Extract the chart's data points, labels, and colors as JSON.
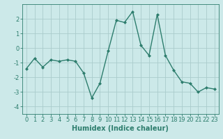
{
  "x": [
    0,
    1,
    2,
    3,
    4,
    5,
    6,
    7,
    8,
    9,
    10,
    11,
    12,
    13,
    14,
    15,
    16,
    17,
    18,
    19,
    20,
    21,
    22,
    23
  ],
  "y": [
    -1.4,
    -0.7,
    -1.3,
    -0.8,
    -0.9,
    -0.8,
    -0.9,
    -1.7,
    -3.4,
    -2.4,
    -0.2,
    1.9,
    1.75,
    2.5,
    0.2,
    -0.5,
    2.3,
    -0.5,
    -1.5,
    -2.3,
    -2.4,
    -3.0,
    -2.7,
    -2.8
  ],
  "line_color": "#2d7d6d",
  "marker": "D",
  "markersize": 2.0,
  "linewidth": 1.0,
  "bg_color": "#cce9e9",
  "grid_color": "#aacccc",
  "xlabel": "Humidex (Indice chaleur)",
  "xlabel_fontsize": 7,
  "tick_fontsize": 6,
  "xlim": [
    -0.5,
    23.5
  ],
  "ylim": [
    -4.5,
    3.0
  ],
  "yticks": [
    -4,
    -3,
    -2,
    -1,
    0,
    1,
    2
  ],
  "xticks": [
    0,
    1,
    2,
    3,
    4,
    5,
    6,
    7,
    8,
    9,
    10,
    11,
    12,
    13,
    14,
    15,
    16,
    17,
    18,
    19,
    20,
    21,
    22,
    23
  ]
}
